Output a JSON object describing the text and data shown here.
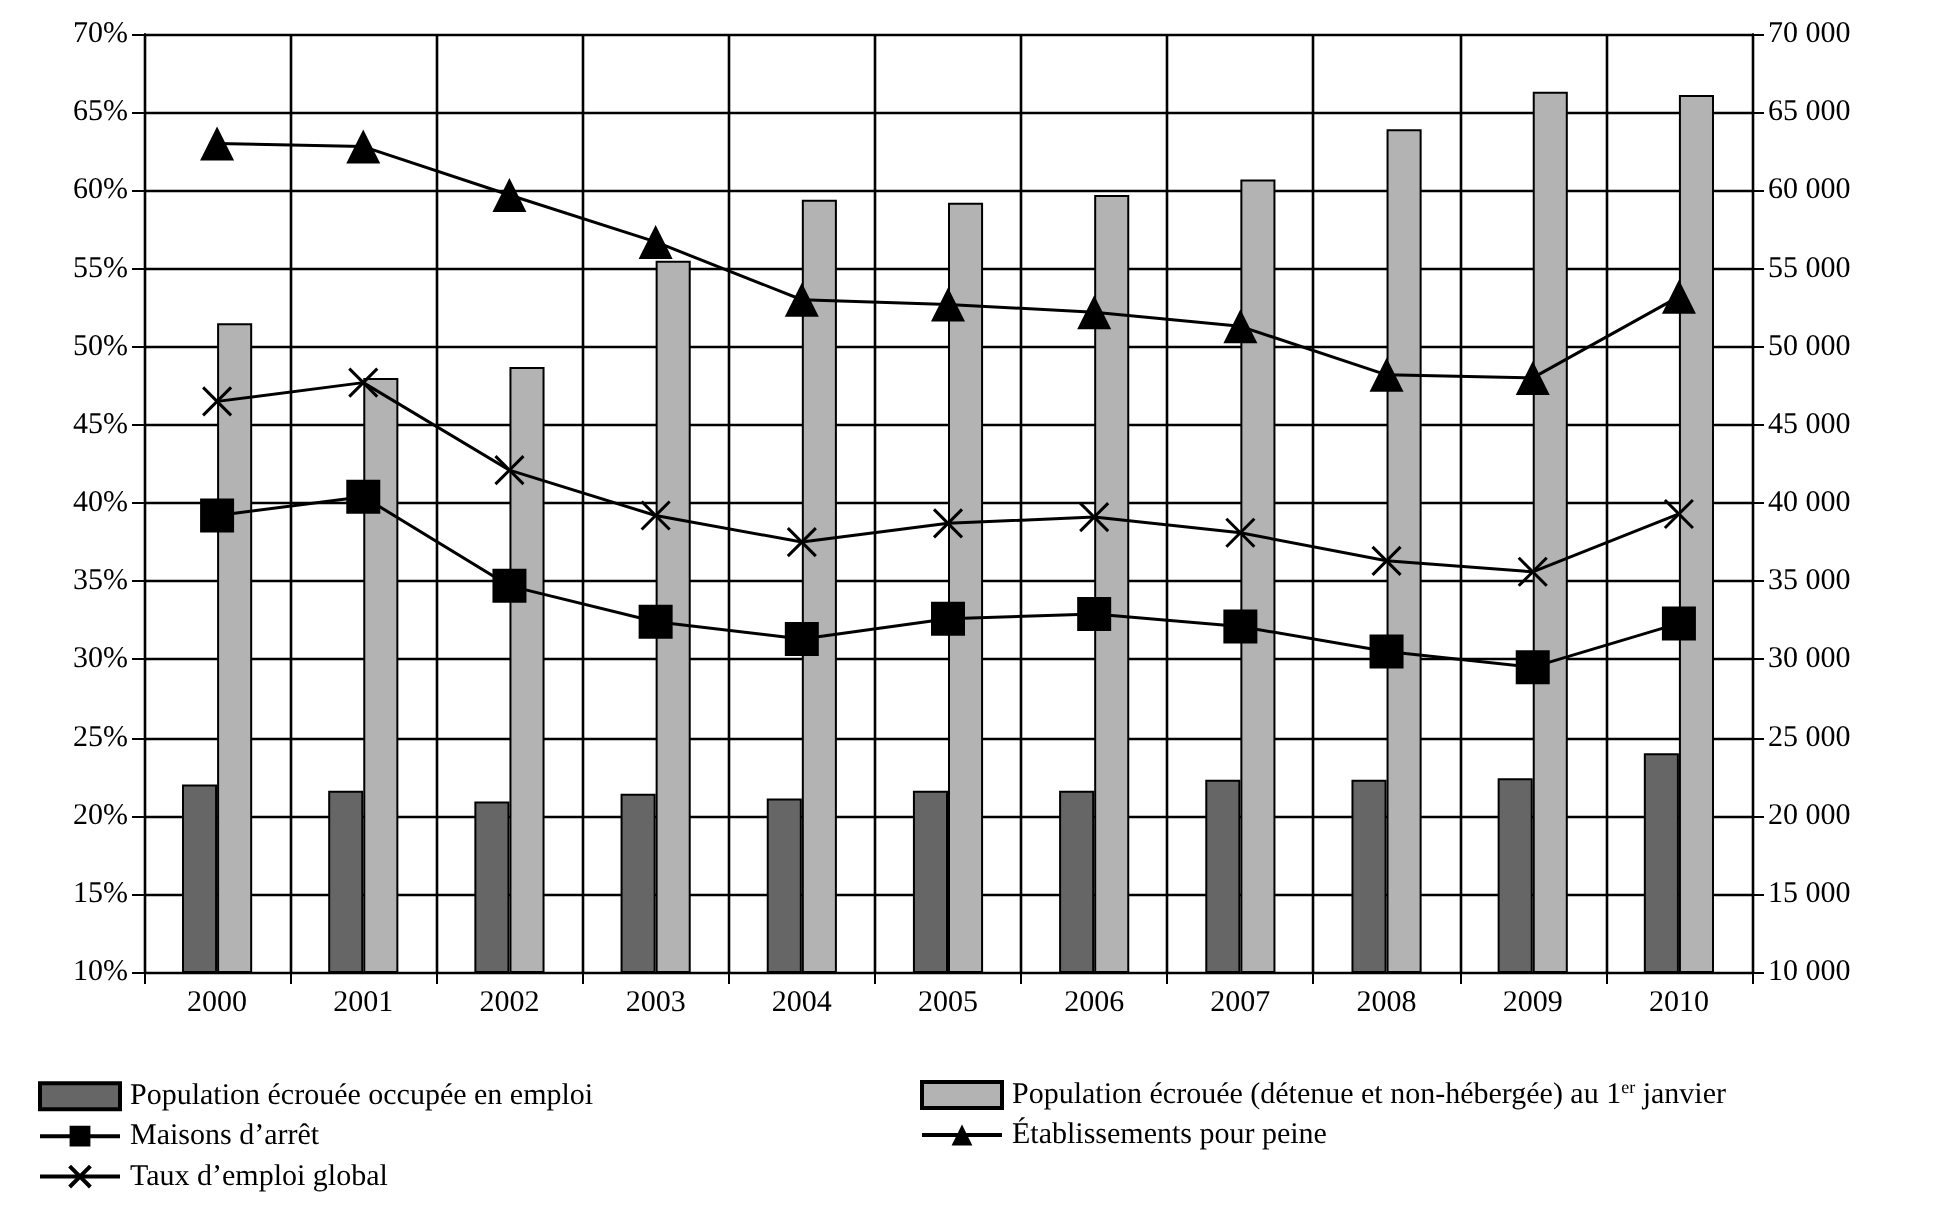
{
  "chart_data": {
    "type": "bar",
    "categories": [
      "2000",
      "2001",
      "2002",
      "2003",
      "2004",
      "2005",
      "2006",
      "2007",
      "2008",
      "2009",
      "2010"
    ],
    "series": [
      {
        "name": "Population écrouée occupée en emploi",
        "axis": "y2",
        "color": "#666666",
        "values": [
          22000,
          21600,
          20900,
          21400,
          21100,
          21600,
          21600,
          22300,
          22300,
          22400,
          24000
        ]
      },
      {
        "name": "Population écrouée (détenue et non-hébergée) au 1$^{er}$ janvier",
        "axis": "y2",
        "color": "#b3b3b3",
        "values": [
          51500,
          48000,
          48700,
          55500,
          59400,
          59200,
          59700,
          60700,
          63900,
          66300,
          66100
        ]
      },
      {
        "name": "Maisons d’arrêt",
        "type": "line",
        "marker": "square",
        "color": "#000000",
        "values": [
          39.2,
          40.4,
          34.7,
          32.4,
          31.3,
          32.6,
          32.9,
          32.1,
          30.5,
          29.5,
          32.3
        ]
      },
      {
        "name": "Établissements pour peine",
        "type": "line",
        "marker": "triangle",
        "color": "#000000",
        "values": [
          63.0,
          62.8,
          59.7,
          56.7,
          53.0,
          52.7,
          52.2,
          51.3,
          48.2,
          48.0,
          53.2
        ]
      },
      {
        "name": "Taux d’emploi global",
        "type": "line",
        "marker": "cross",
        "color": "#000000",
        "values": [
          46.5,
          47.7,
          42.1,
          39.2,
          37.5,
          38.7,
          39.1,
          38.1,
          36.3,
          35.6,
          39.3
        ]
      }
    ],
    "ylim": [
      10,
      70
    ],
    "yticks": [
      {
        "value": 10,
        "label": "10%"
      },
      {
        "value": 15,
        "label": "15%"
      },
      {
        "value": 20,
        "label": "20%"
      },
      {
        "value": 25,
        "label": "25%"
      },
      {
        "value": 30,
        "label": "30%"
      },
      {
        "value": 35,
        "label": "35%"
      },
      {
        "value": 40,
        "label": "40%"
      },
      {
        "value": 45,
        "label": "45%"
      },
      {
        "value": 50,
        "label": "50%"
      },
      {
        "value": 55,
        "label": "55%"
      },
      {
        "value": 60,
        "label": "60%"
      },
      {
        "value": 65,
        "label": "65%"
      },
      {
        "value": 70,
        "label": "70%"
      }
    ],
    "y2lim": [
      10000,
      70000
    ],
    "y2ticks": [
      {
        "value": 10000,
        "label": "10 000"
      },
      {
        "value": 15000,
        "label": "15 000"
      },
      {
        "value": 20000,
        "label": "20 000"
      },
      {
        "value": 25000,
        "label": "25 000"
      },
      {
        "value": 30000,
        "label": "30 000"
      },
      {
        "value": 35000,
        "label": "35 000"
      },
      {
        "value": 40000,
        "label": "40 000"
      },
      {
        "value": 45000,
        "label": "45 000"
      },
      {
        "value": 50000,
        "label": "50 000"
      },
      {
        "value": 55000,
        "label": "55 000"
      },
      {
        "value": 60000,
        "label": "60 000"
      },
      {
        "value": 65000,
        "label": "65 000"
      },
      {
        "value": 70000,
        "label": "70 000"
      }
    ],
    "grid": true,
    "legend": "bottom"
  }
}
